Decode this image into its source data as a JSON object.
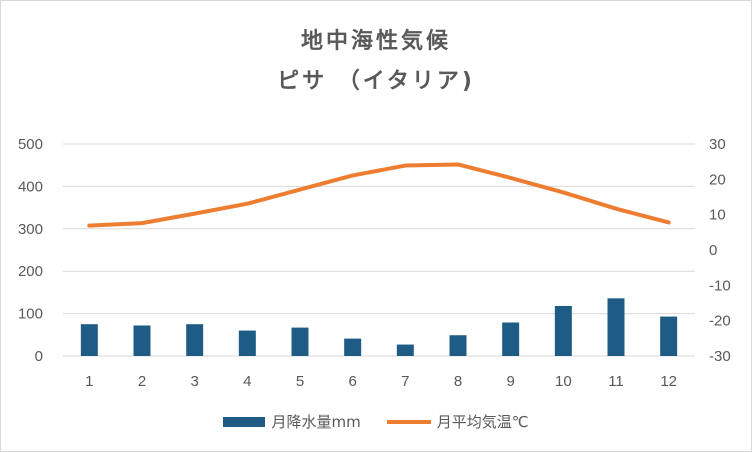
{
  "chart_data": {
    "type": "bar",
    "title": "地中海性気候",
    "subtitle": "ピサ （イタリア)",
    "categories": [
      "1",
      "2",
      "3",
      "4",
      "5",
      "6",
      "7",
      "8",
      "9",
      "10",
      "11",
      "12"
    ],
    "series": [
      {
        "name": "月降水量mm",
        "type": "bar",
        "axis": "left",
        "color": "#1f5c85",
        "values": [
          75,
          72,
          75,
          60,
          67,
          41,
          27,
          49,
          79,
          118,
          136,
          93
        ]
      },
      {
        "name": "月平均気温℃",
        "type": "line",
        "axis": "right",
        "color": "#ed7d31",
        "values": [
          6.9,
          7.6,
          10.3,
          13.1,
          17.1,
          21.1,
          23.9,
          24.2,
          20.4,
          16.3,
          11.7,
          7.8
        ]
      }
    ],
    "y_left": {
      "ylim": [
        0,
        500
      ],
      "ticks": [
        "0",
        "100",
        "200",
        "300",
        "400",
        "500"
      ]
    },
    "y_right": {
      "ylim": [
        -30,
        30
      ],
      "ticks": [
        "-30",
        "-20",
        "-10",
        "0",
        "10",
        "20",
        "30"
      ]
    },
    "grid": true,
    "legend_position": "bottom"
  }
}
